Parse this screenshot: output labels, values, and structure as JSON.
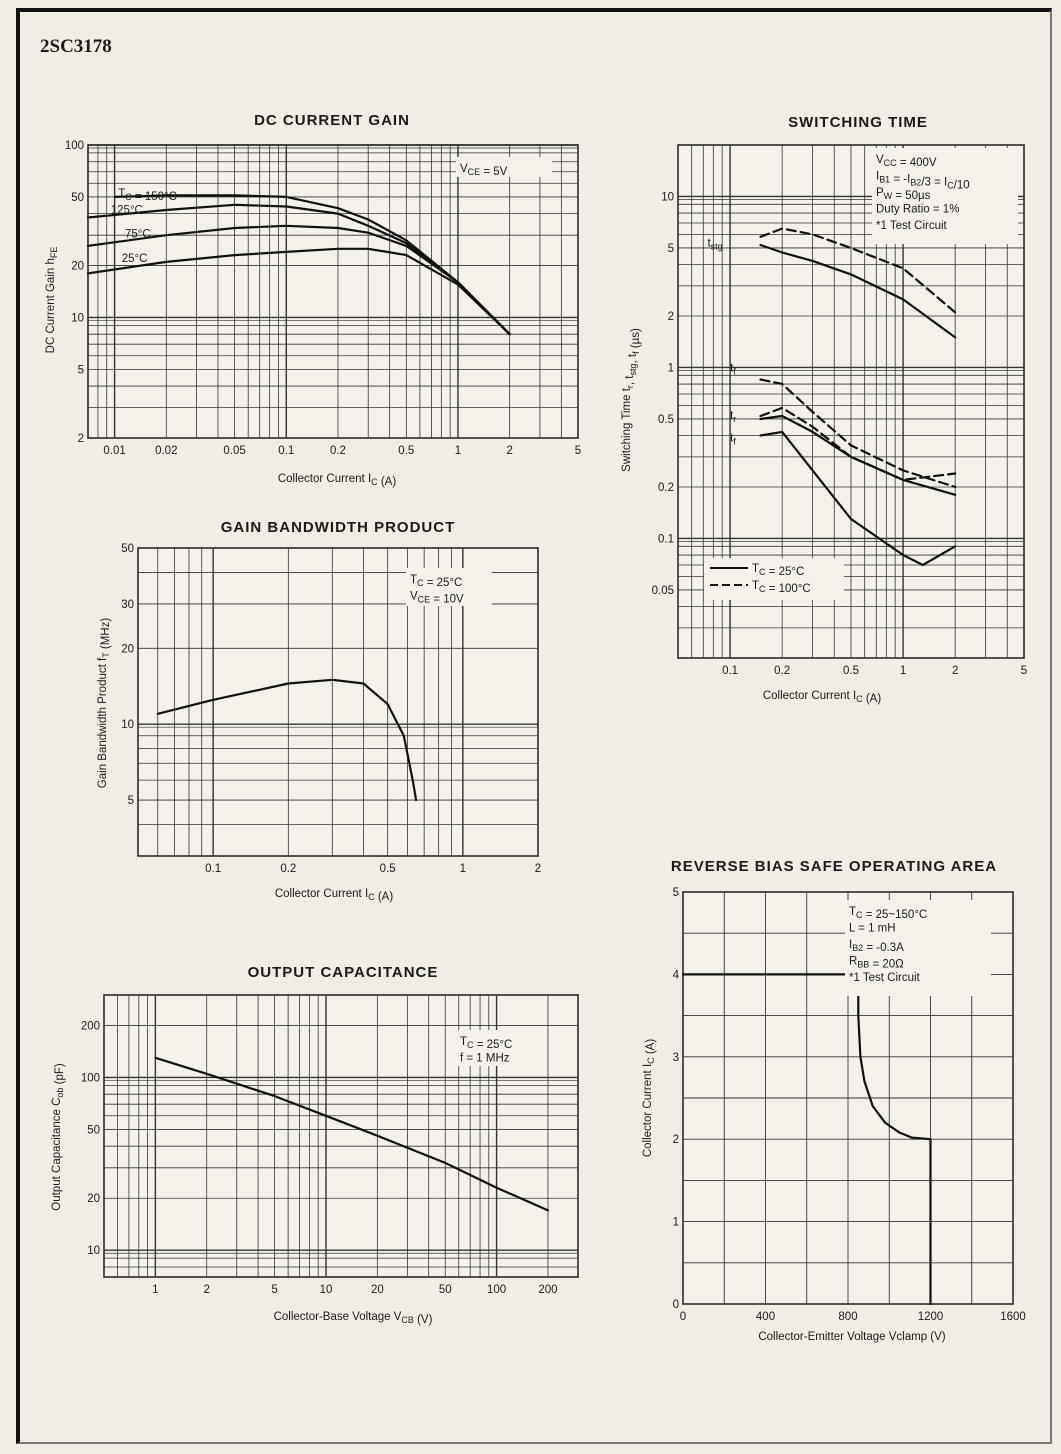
{
  "page": {
    "part_number": "2SC3178"
  },
  "chart_data": [
    {
      "id": "dc_current_gain",
      "type": "line",
      "title": "DC CURRENT GAIN",
      "xlabel": "Collector Current I_C (A)",
      "ylabel": "DC Current Gain h_FE",
      "x_scale": "log",
      "y_scale": "log",
      "xlim": [
        0.007,
        5
      ],
      "ylim": [
        2,
        100
      ],
      "x_ticks": [
        0.01,
        0.02,
        0.05,
        0.1,
        0.2,
        0.5,
        1,
        2,
        5
      ],
      "x_tick_labels": [
        "0.01",
        "0.02",
        "0.05",
        "0.1",
        "0.2",
        "0.5",
        "1",
        "2",
        "5"
      ],
      "y_ticks": [
        2,
        5,
        10,
        20,
        50,
        100
      ],
      "y_tick_labels": [
        "2",
        "5",
        "10",
        "20",
        "50",
        "100"
      ],
      "annotations": [
        "V_CE = 5V"
      ],
      "series": [
        {
          "name": "T_C = 150°C",
          "x": [
            0.01,
            0.02,
            0.05,
            0.1,
            0.2,
            0.3,
            0.5,
            1,
            2
          ],
          "y": [
            50,
            51,
            51,
            50,
            43,
            37,
            28,
            16,
            8
          ]
        },
        {
          "name": "125°C",
          "x": [
            0.007,
            0.02,
            0.05,
            0.1,
            0.2,
            0.3,
            0.5,
            1,
            2
          ],
          "y": [
            38,
            42,
            45,
            44,
            40,
            34,
            27,
            16,
            8
          ]
        },
        {
          "name": "75°C",
          "x": [
            0.007,
            0.02,
            0.05,
            0.1,
            0.2,
            0.3,
            0.5,
            1,
            2
          ],
          "y": [
            26,
            30,
            33,
            34,
            33,
            31,
            26,
            16,
            8
          ]
        },
        {
          "name": "25°C",
          "x": [
            0.007,
            0.02,
            0.05,
            0.1,
            0.2,
            0.3,
            0.5,
            1,
            2
          ],
          "y": [
            18,
            21,
            23,
            24,
            25,
            25,
            23,
            15.5,
            8
          ]
        }
      ]
    },
    {
      "id": "switching_time",
      "type": "line",
      "title": "SWITCHING TIME",
      "xlabel": "Collector Current I_C (A)",
      "ylabel": "Switching Time t_r, t_stg, t_f (µs)",
      "x_scale": "log",
      "y_scale": "log",
      "xlim": [
        0.05,
        5
      ],
      "ylim": [
        0.02,
        20
      ],
      "x_ticks": [
        0.1,
        0.2,
        0.5,
        1,
        2,
        5
      ],
      "x_tick_labels": [
        "0.1",
        "0.2",
        "0.5",
        "1",
        "2",
        "5"
      ],
      "y_ticks": [
        0.05,
        0.1,
        0.2,
        0.5,
        1,
        2,
        5,
        10
      ],
      "y_tick_labels": [
        "0.05",
        "0.1",
        "0.2",
        "0.5",
        "1",
        "2",
        "5",
        "10"
      ],
      "annotations": [
        "V_CC = 400V",
        "I_B1 = -I_B2/3 = I_C/10",
        "P_W = 50µs",
        "Duty Ratio = 1%",
        "*1 Test Circuit"
      ],
      "legend": [
        "T_C = 25°C",
        "T_C = 100°C"
      ],
      "curve_labels": [
        "t_stg",
        "t_f",
        "t_r",
        "t_f"
      ],
      "series": [
        {
          "name": "t_stg 25°C",
          "style": "solid",
          "x": [
            0.15,
            0.2,
            0.3,
            0.5,
            1,
            2
          ],
          "y": [
            5.2,
            4.7,
            4.2,
            3.5,
            2.5,
            1.5
          ]
        },
        {
          "name": "t_stg 100°C",
          "style": "dashed",
          "x": [
            0.15,
            0.2,
            0.3,
            0.5,
            1,
            2
          ],
          "y": [
            5.8,
            6.5,
            6.0,
            5.0,
            3.8,
            2.1
          ]
        },
        {
          "name": "t_f 100°C",
          "style": "dashed",
          "x": [
            0.15,
            0.2,
            0.3,
            0.5,
            1,
            2
          ],
          "y": [
            0.85,
            0.8,
            0.55,
            0.35,
            0.25,
            0.2
          ]
        },
        {
          "name": "t_r 25°C",
          "style": "solid",
          "x": [
            0.15,
            0.2,
            0.3,
            0.5,
            1,
            2
          ],
          "y": [
            0.5,
            0.52,
            0.42,
            0.3,
            0.22,
            0.18
          ]
        },
        {
          "name": "t_r 100°C",
          "style": "dashed",
          "x": [
            0.15,
            0.2,
            0.3,
            0.5,
            1,
            2
          ],
          "y": [
            0.52,
            0.58,
            0.45,
            0.3,
            0.22,
            0.24
          ]
        },
        {
          "name": "t_f 25°C",
          "style": "solid",
          "x": [
            0.15,
            0.2,
            0.3,
            0.5,
            1,
            1.3,
            2
          ],
          "y": [
            0.4,
            0.42,
            0.25,
            0.13,
            0.08,
            0.07,
            0.09
          ]
        }
      ]
    },
    {
      "id": "gain_bandwidth_product",
      "type": "line",
      "title": "GAIN BANDWIDTH PRODUCT",
      "xlabel": "Collector Current I_C (A)",
      "ylabel": "Gain Bandwidth Product f_T (MHz)",
      "x_scale": "log",
      "y_scale": "log",
      "xlim": [
        0.05,
        2
      ],
      "ylim": [
        3,
        50
      ],
      "x_ticks": [
        0.1,
        0.2,
        0.5,
        1,
        2
      ],
      "x_tick_labels": [
        "0.1",
        "0.2",
        "0.5",
        "1",
        "2"
      ],
      "y_ticks": [
        5,
        10,
        20,
        30,
        50
      ],
      "y_tick_labels": [
        "5",
        "10",
        "20",
        "30",
        "50"
      ],
      "annotations": [
        "T_C = 25°C",
        "V_CE = 10V"
      ],
      "series": [
        {
          "name": "f_T",
          "x": [
            0.06,
            0.1,
            0.2,
            0.3,
            0.4,
            0.5,
            0.58,
            0.63,
            0.65
          ],
          "y": [
            11,
            12.5,
            14.5,
            15,
            14.5,
            12,
            9,
            6,
            5
          ]
        }
      ]
    },
    {
      "id": "output_capacitance",
      "type": "line",
      "title": "OUTPUT CAPACITANCE",
      "xlabel": "Collector-Base Voltage V_CB (V)",
      "ylabel": "Output Capacitance C_ob (pF)",
      "x_scale": "log",
      "y_scale": "log",
      "xlim": [
        0.5,
        300
      ],
      "ylim": [
        7,
        300
      ],
      "x_ticks": [
        1,
        2,
        5,
        10,
        20,
        50,
        100,
        200
      ],
      "x_tick_labels": [
        "1",
        "2",
        "5",
        "10",
        "20",
        "50",
        "100",
        "200"
      ],
      "y_ticks": [
        10,
        20,
        50,
        100,
        200
      ],
      "y_tick_labels": [
        "10",
        "20",
        "50",
        "100",
        "200"
      ],
      "annotations": [
        "T_C = 25°C",
        "f = 1 MHz"
      ],
      "series": [
        {
          "name": "C_ob",
          "x": [
            1,
            2,
            5,
            10,
            20,
            50,
            100,
            200
          ],
          "y": [
            130,
            105,
            78,
            60,
            46,
            32,
            23,
            17
          ]
        }
      ]
    },
    {
      "id": "rbsoa",
      "type": "line",
      "title": "REVERSE BIAS SAFE OPERATING AREA",
      "xlabel": "Collector-Emitter Voltage Vclamp (V)",
      "ylabel": "Collector Current I_C (A)",
      "x_scale": "linear",
      "y_scale": "linear",
      "xlim": [
        0,
        1600
      ],
      "ylim": [
        0,
        5
      ],
      "x_ticks": [
        0,
        400,
        800,
        1200,
        1600
      ],
      "x_tick_labels": [
        "0",
        "400",
        "800",
        "1200",
        "1600"
      ],
      "y_ticks": [
        0,
        1,
        2,
        3,
        4,
        5
      ],
      "y_tick_labels": [
        "0",
        "1",
        "2",
        "3",
        "4",
        "5"
      ],
      "annotations": [
        "T_C = 25~150°C",
        "L = 1 mH",
        "I_B2 = -0.3A",
        "R_BB = 20Ω",
        "*1 Test Circuit"
      ],
      "series": [
        {
          "name": "RBSOA",
          "x": [
            0,
            850,
            850,
            860,
            880,
            920,
            980,
            1050,
            1110,
            1200,
            1200
          ],
          "y": [
            4,
            4,
            3.5,
            3.0,
            2.7,
            2.4,
            2.2,
            2.08,
            2.02,
            2.0,
            0
          ]
        }
      ]
    }
  ]
}
